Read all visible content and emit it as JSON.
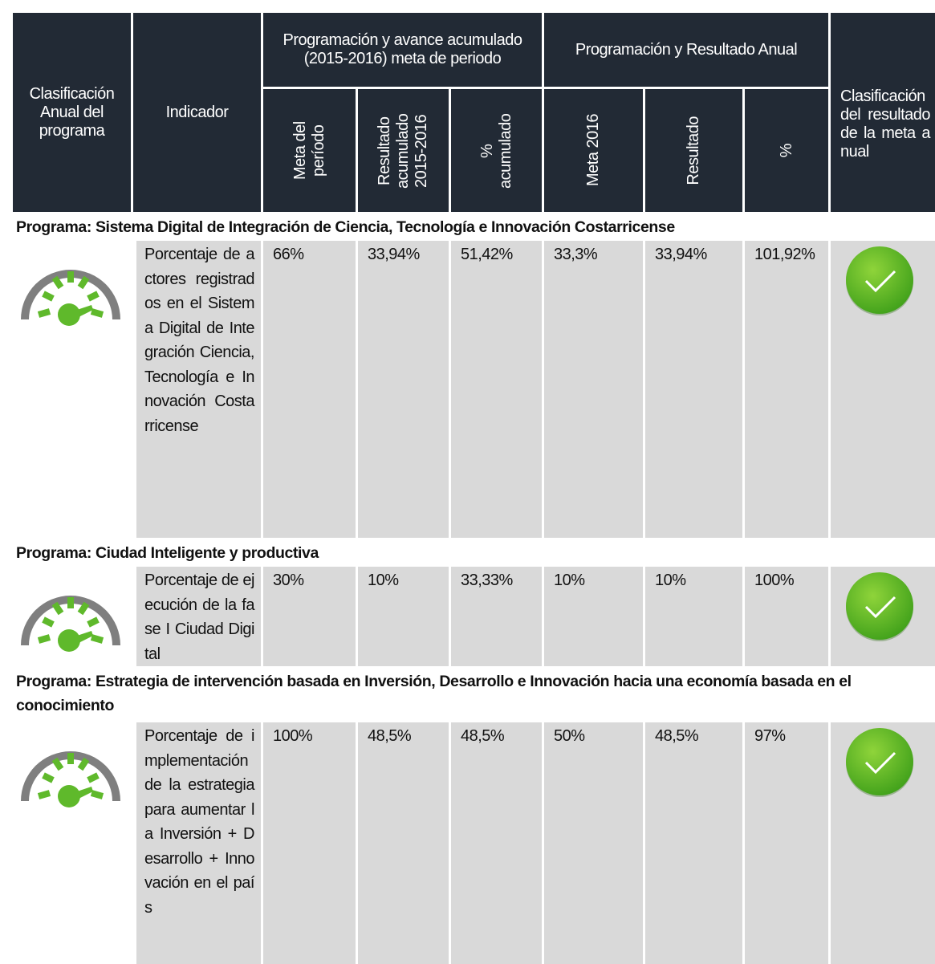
{
  "header": {
    "program_class": "Clasificación Anual del programa",
    "indicator": "Indicador",
    "group_period": "Programación y avance acumulado (2015-2016) meta de periodo",
    "group_annual": "Programación y Resultado Anual",
    "result_class": "Clasificación del resultado de la meta anual",
    "columns": [
      "Meta del período",
      "Resultado acumulado 2015-2016",
      "% acumulado",
      "Meta 2016",
      "Resultado",
      "%"
    ]
  },
  "programs": [
    {
      "title": "Programa: Sistema Digital de Integración de Ciencia, Tecnología e Innovación Costarricense",
      "indicator": "Porcentaje de actores registrados en el Sistema Digital de Integración Ciencia, Tecnología e Innovación Costarricense",
      "values": [
        "66%",
        "33,94%",
        "51,42%",
        "33,3%",
        "33,94%",
        "101,92%"
      ]
    },
    {
      "title": "Programa: Ciudad Inteligente y productiva",
      "indicator": "Porcentaje de ejecución de la fase I Ciudad Digital",
      "values": [
        "30%",
        "10%",
        "33,33%",
        "10%",
        "10%",
        "100%"
      ]
    },
    {
      "title": "Programa: Estrategia de intervención basada en Inversión, Desarrollo e Innovación hacia una economía basada en el conocimiento",
      "indicator": "Porcentaje de implementación de la estrategia para aumentar la Inversión + Desarrollo + Innovación en el país",
      "values": [
        "100%",
        "48,5%",
        "48,5%",
        "50%",
        "48,5%",
        "97%"
      ]
    }
  ]
}
